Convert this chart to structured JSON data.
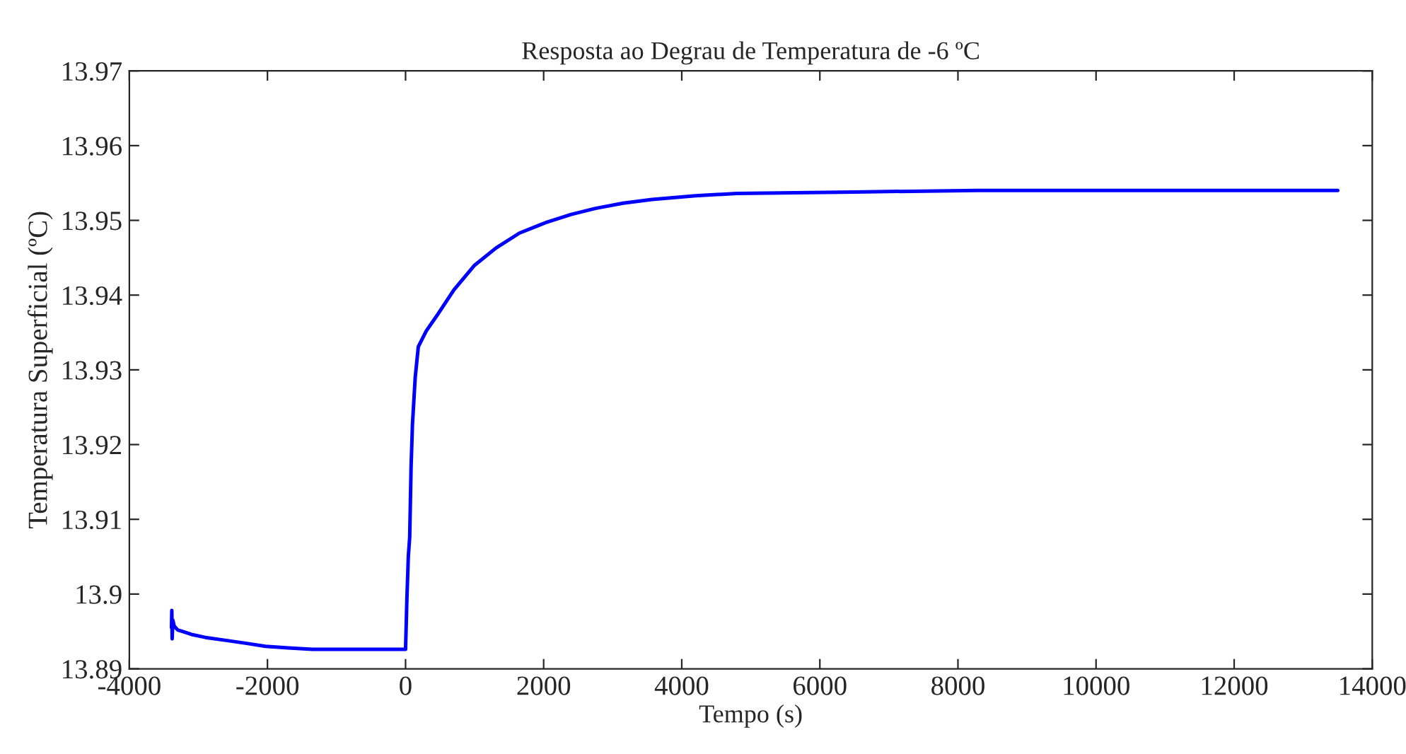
{
  "chart_data": {
    "type": "line",
    "title": "Resposta ao Degrau de Temperatura de -6 ºC",
    "xlabel": "Tempo (s)",
    "ylabel": "Temperatura Superficial (ºC)",
    "series": [
      {
        "color": "#0000ff",
        "x": [
          -3390,
          -3385,
          -3380,
          -3370,
          -3350,
          -3300,
          -3100,
          -2900,
          -2600,
          -2300,
          -2030,
          -1700,
          -1350,
          -800,
          -10,
          0,
          20,
          40,
          60,
          80,
          100,
          140,
          185,
          300,
          450,
          700,
          1000,
          1310,
          1650,
          2030,
          2400,
          2750,
          3150,
          3570,
          4200,
          4800,
          6500,
          8280,
          10000,
          12000,
          13500
        ],
        "values": [
          13.8955,
          13.8978,
          13.894,
          13.8965,
          13.8957,
          13.8952,
          13.8946,
          13.8942,
          13.8938,
          13.8934,
          13.893,
          13.8928,
          13.8926,
          13.8926,
          13.8926,
          13.8926,
          13.8995,
          13.905,
          13.9076,
          13.917,
          13.9227,
          13.929,
          13.9331,
          13.9352,
          13.9372,
          13.9407,
          13.944,
          13.9463,
          13.9483,
          13.9497,
          13.9508,
          13.9516,
          13.9523,
          13.9528,
          13.9533,
          13.9536,
          13.9538,
          13.954,
          13.954,
          13.954,
          13.954
        ]
      }
    ],
    "xlim": [
      -4000,
      14000
    ],
    "xticks": [
      -4000,
      -2000,
      0,
      2000,
      4000,
      6000,
      8000,
      10000,
      12000,
      14000
    ],
    "ylim": [
      13.89,
      13.97
    ],
    "yticks": [
      13.89,
      13.9,
      13.91,
      13.92,
      13.93,
      13.94,
      13.95,
      13.96,
      13.97
    ],
    "grid": false,
    "legend": false,
    "marker": "none",
    "line_style": "solid"
  }
}
